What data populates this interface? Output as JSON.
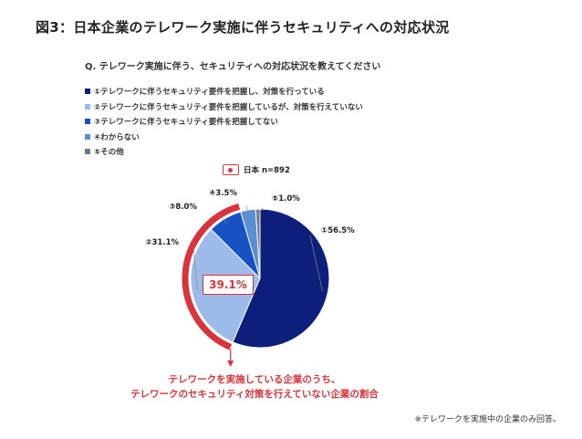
{
  "title": "図3：日本企業のテレワーク実施に伴うセキュリティへの対応状況",
  "question": "Q. テレワーク実施に伴う、セキュリティへの対応状況を教えてください",
  "legend": [
    {
      "label": "①テレワークに伴うセキュリティ要件を把握し、対策を行っている",
      "color": "#0d1f7a"
    },
    {
      "label": "②テレワークに伴うセキュリティ要件を把握しているが、対策を行えていない",
      "color": "#9dbbe8"
    },
    {
      "label": "③テレワークに伴うセキュリティ要件を把握してない",
      "color": "#1652c4"
    },
    {
      "label": "④わからない",
      "color": "#5b8fd3"
    },
    {
      "label": "⑤その他",
      "color": "#6d7a8c"
    }
  ],
  "country_label": "日本 n=892",
  "highlight_value": "39.1%",
  "annotation": [
    "テレワークを実施している企業のうち、",
    "テレワークのセキュリティ対策を行えていない企業の割合"
  ],
  "footnote": "※テレワークを実施中の企業のみ回答。",
  "accent_color": "#d9343b",
  "chart_data": {
    "type": "pie",
    "categories": [
      "①",
      "②",
      "③",
      "④",
      "⑤"
    ],
    "values": [
      56.5,
      31.1,
      8.0,
      3.5,
      1.0
    ],
    "labels": [
      "①56.5%",
      "②31.1%",
      "③8.0%",
      "④3.5%",
      "⑤1.0%"
    ],
    "colors": [
      "#0d1f7a",
      "#9dbbe8",
      "#1652c4",
      "#5b8fd3",
      "#6d7a8c"
    ],
    "highlighted_slices": [
      "②",
      "③"
    ],
    "highlight_total": 39.1
  }
}
